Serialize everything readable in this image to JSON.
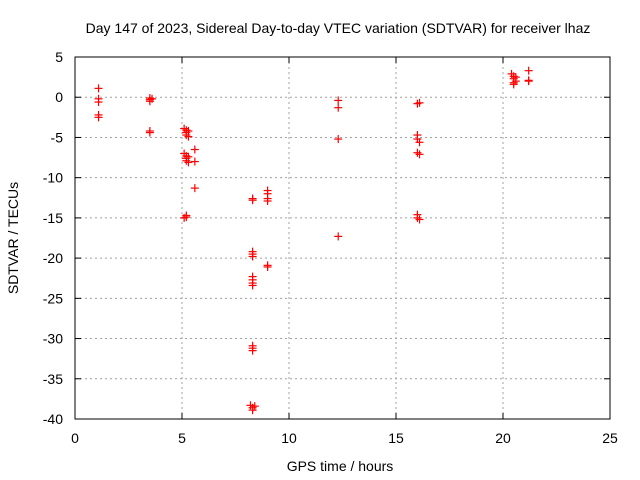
{
  "chart_data": {
    "type": "scatter",
    "title": "Day 147 of 2023, Sidereal Day-to-day VTEC variation (SDTVAR) for receiver lhaz",
    "xlabel": "GPS time / hours",
    "ylabel": "SDTVAR / TECUs",
    "xlim": [
      0,
      25
    ],
    "ylim": [
      -40,
      5
    ],
    "xticks": [
      0,
      5,
      10,
      15,
      20,
      25
    ],
    "yticks": [
      5,
      0,
      -5,
      -10,
      -15,
      -20,
      -25,
      -30,
      -35,
      -40
    ],
    "grid": true,
    "marker": "+",
    "colors": {
      "series": "#ff0000",
      "grid": "#a0a0a0",
      "axis": "#000000"
    },
    "series": [
      {
        "name": "SDTVAR",
        "points": [
          [
            1.1,
            1.1
          ],
          [
            1.1,
            -0.2
          ],
          [
            1.1,
            -0.6
          ],
          [
            1.1,
            -2.2
          ],
          [
            1.1,
            -2.5
          ],
          [
            3.5,
            -0.1
          ],
          [
            3.5,
            -0.3
          ],
          [
            3.5,
            -0.5
          ],
          [
            3.6,
            -0.2
          ],
          [
            3.5,
            -4.2
          ],
          [
            3.5,
            -4.4
          ],
          [
            5.1,
            -3.9
          ],
          [
            5.2,
            -4.1
          ],
          [
            5.2,
            -4.4
          ],
          [
            5.2,
            -4.7
          ],
          [
            5.3,
            -4.2
          ],
          [
            5.3,
            -4.9
          ],
          [
            5.1,
            -7.0
          ],
          [
            5.2,
            -7.3
          ],
          [
            5.2,
            -7.6
          ],
          [
            5.2,
            -7.9
          ],
          [
            5.3,
            -8.1
          ],
          [
            5.3,
            -7.4
          ],
          [
            5.6,
            -6.5
          ],
          [
            5.6,
            -8.0
          ],
          [
            5.6,
            -11.3
          ],
          [
            5.1,
            -15.0
          ],
          [
            5.2,
            -14.7
          ],
          [
            5.2,
            -14.9
          ],
          [
            8.3,
            -12.6
          ],
          [
            8.3,
            -12.8
          ],
          [
            8.3,
            -19.2
          ],
          [
            8.3,
            -19.5
          ],
          [
            8.3,
            -19.8
          ],
          [
            8.3,
            -22.3
          ],
          [
            8.3,
            -22.7
          ],
          [
            8.3,
            -23.1
          ],
          [
            8.3,
            -23.4
          ],
          [
            8.3,
            -30.9
          ],
          [
            8.3,
            -31.2
          ],
          [
            8.3,
            -31.5
          ],
          [
            8.2,
            -38.3
          ],
          [
            8.3,
            -38.6
          ],
          [
            8.3,
            -38.9
          ],
          [
            8.4,
            -38.4
          ],
          [
            9.0,
            -11.6
          ],
          [
            9.0,
            -12.0
          ],
          [
            9.0,
            -12.6
          ],
          [
            9.0,
            -12.9
          ],
          [
            9.0,
            -20.9
          ],
          [
            9.0,
            -21.1
          ],
          [
            12.3,
            -0.4
          ],
          [
            12.3,
            -1.3
          ],
          [
            12.3,
            -5.2
          ],
          [
            12.3,
            -17.3
          ],
          [
            16.0,
            -0.8
          ],
          [
            16.1,
            -0.7
          ],
          [
            16.0,
            -4.7
          ],
          [
            16.0,
            -5.2
          ],
          [
            16.1,
            -5.6
          ],
          [
            16.0,
            -6.9
          ],
          [
            16.1,
            -7.1
          ],
          [
            16.0,
            -14.6
          ],
          [
            16.0,
            -15.0
          ],
          [
            16.1,
            -15.2
          ],
          [
            20.4,
            2.9
          ],
          [
            20.5,
            2.6
          ],
          [
            20.5,
            2.3
          ],
          [
            20.6,
            2.0
          ],
          [
            20.5,
            1.8
          ],
          [
            20.6,
            2.5
          ],
          [
            20.5,
            1.6
          ],
          [
            21.2,
            3.3
          ],
          [
            21.2,
            2.1
          ],
          [
            21.2,
            2.0
          ]
        ]
      }
    ]
  }
}
